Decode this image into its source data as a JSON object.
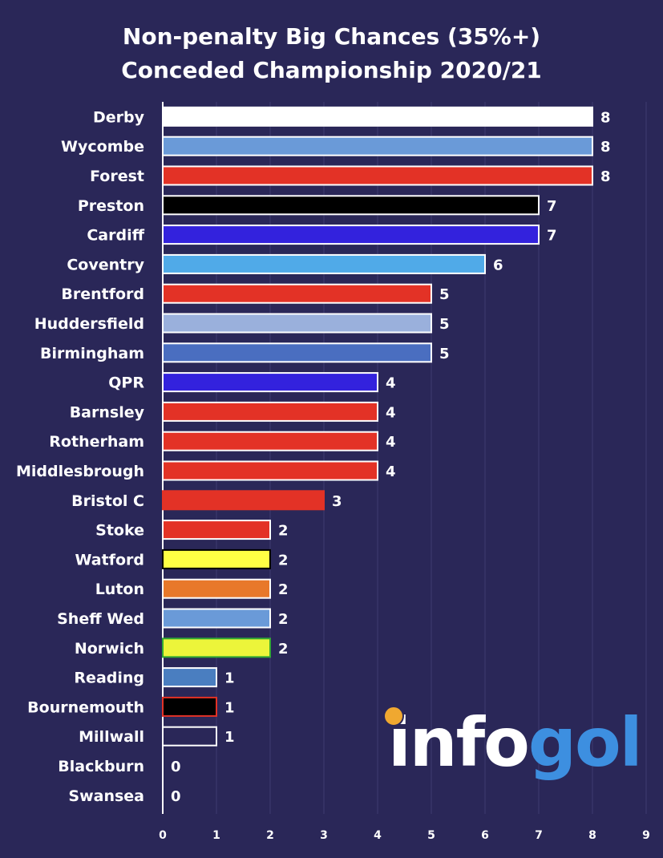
{
  "chart_data": {
    "type": "bar",
    "orientation": "horizontal",
    "title": "Non-penalty Big Chances (35%+) Conceded Championship 2020/21",
    "title_lines": [
      "Non-penalty Big Chances (35%+)",
      "Conceded Championship 2020/21"
    ],
    "categories": [
      "Derby",
      "Wycombe",
      "Forest",
      "Preston",
      "Cardiff",
      "Coventry",
      "Brentford",
      "Huddersfield",
      "Birmingham",
      "QPR",
      "Barnsley",
      "Rotherham",
      "Middlesbrough",
      "Bristol C",
      "Stoke",
      "Watford",
      "Luton",
      "Sheff Wed",
      "Norwich",
      "Reading",
      "Bournemouth",
      "Millwall",
      "Blackburn",
      "Swansea"
    ],
    "values": [
      8,
      8,
      8,
      7,
      7,
      6,
      5,
      5,
      5,
      4,
      4,
      4,
      4,
      3,
      2,
      2,
      2,
      2,
      2,
      1,
      1,
      1,
      0,
      0
    ],
    "colors": [
      "#ffffff",
      "#6a9ad8",
      "#e33226",
      "#000000",
      "#3322dd",
      "#50aae8",
      "#e33226",
      "#9ab0dc",
      "#4a6ec0",
      "#3322dd",
      "#e33226",
      "#e33226",
      "#e33226",
      "#e33226",
      "#e33226",
      "#ffff44",
      "#e8782a",
      "#6a9ad8",
      "#ecf53a",
      "#4a7ec0",
      "#000000",
      "#2a2758",
      "#2a2758",
      "#2a2758"
    ],
    "border_colors": [
      "#ffffff",
      "#ffffff",
      "#ffffff",
      "#ffffff",
      "#ffffff",
      "#ffffff",
      "#ffffff",
      "#ffffff",
      "#ffffff",
      "#ffffff",
      "#ffffff",
      "#ffffff",
      "#ffffff",
      "#e33226",
      "#ffffff",
      "#000000",
      "#ffffff",
      "#ffffff",
      "#33aa33",
      "#ffffff",
      "#e33226",
      "#ffffff",
      "#ffffff",
      "#ffffff"
    ],
    "xlim": [
      0,
      9
    ],
    "x_ticks": [
      0,
      1,
      2,
      3,
      4,
      5,
      6,
      7,
      8,
      9
    ],
    "grid": true,
    "background": "#2a2758"
  },
  "logo": {
    "text_white": "info",
    "text_blue": "gol"
  }
}
